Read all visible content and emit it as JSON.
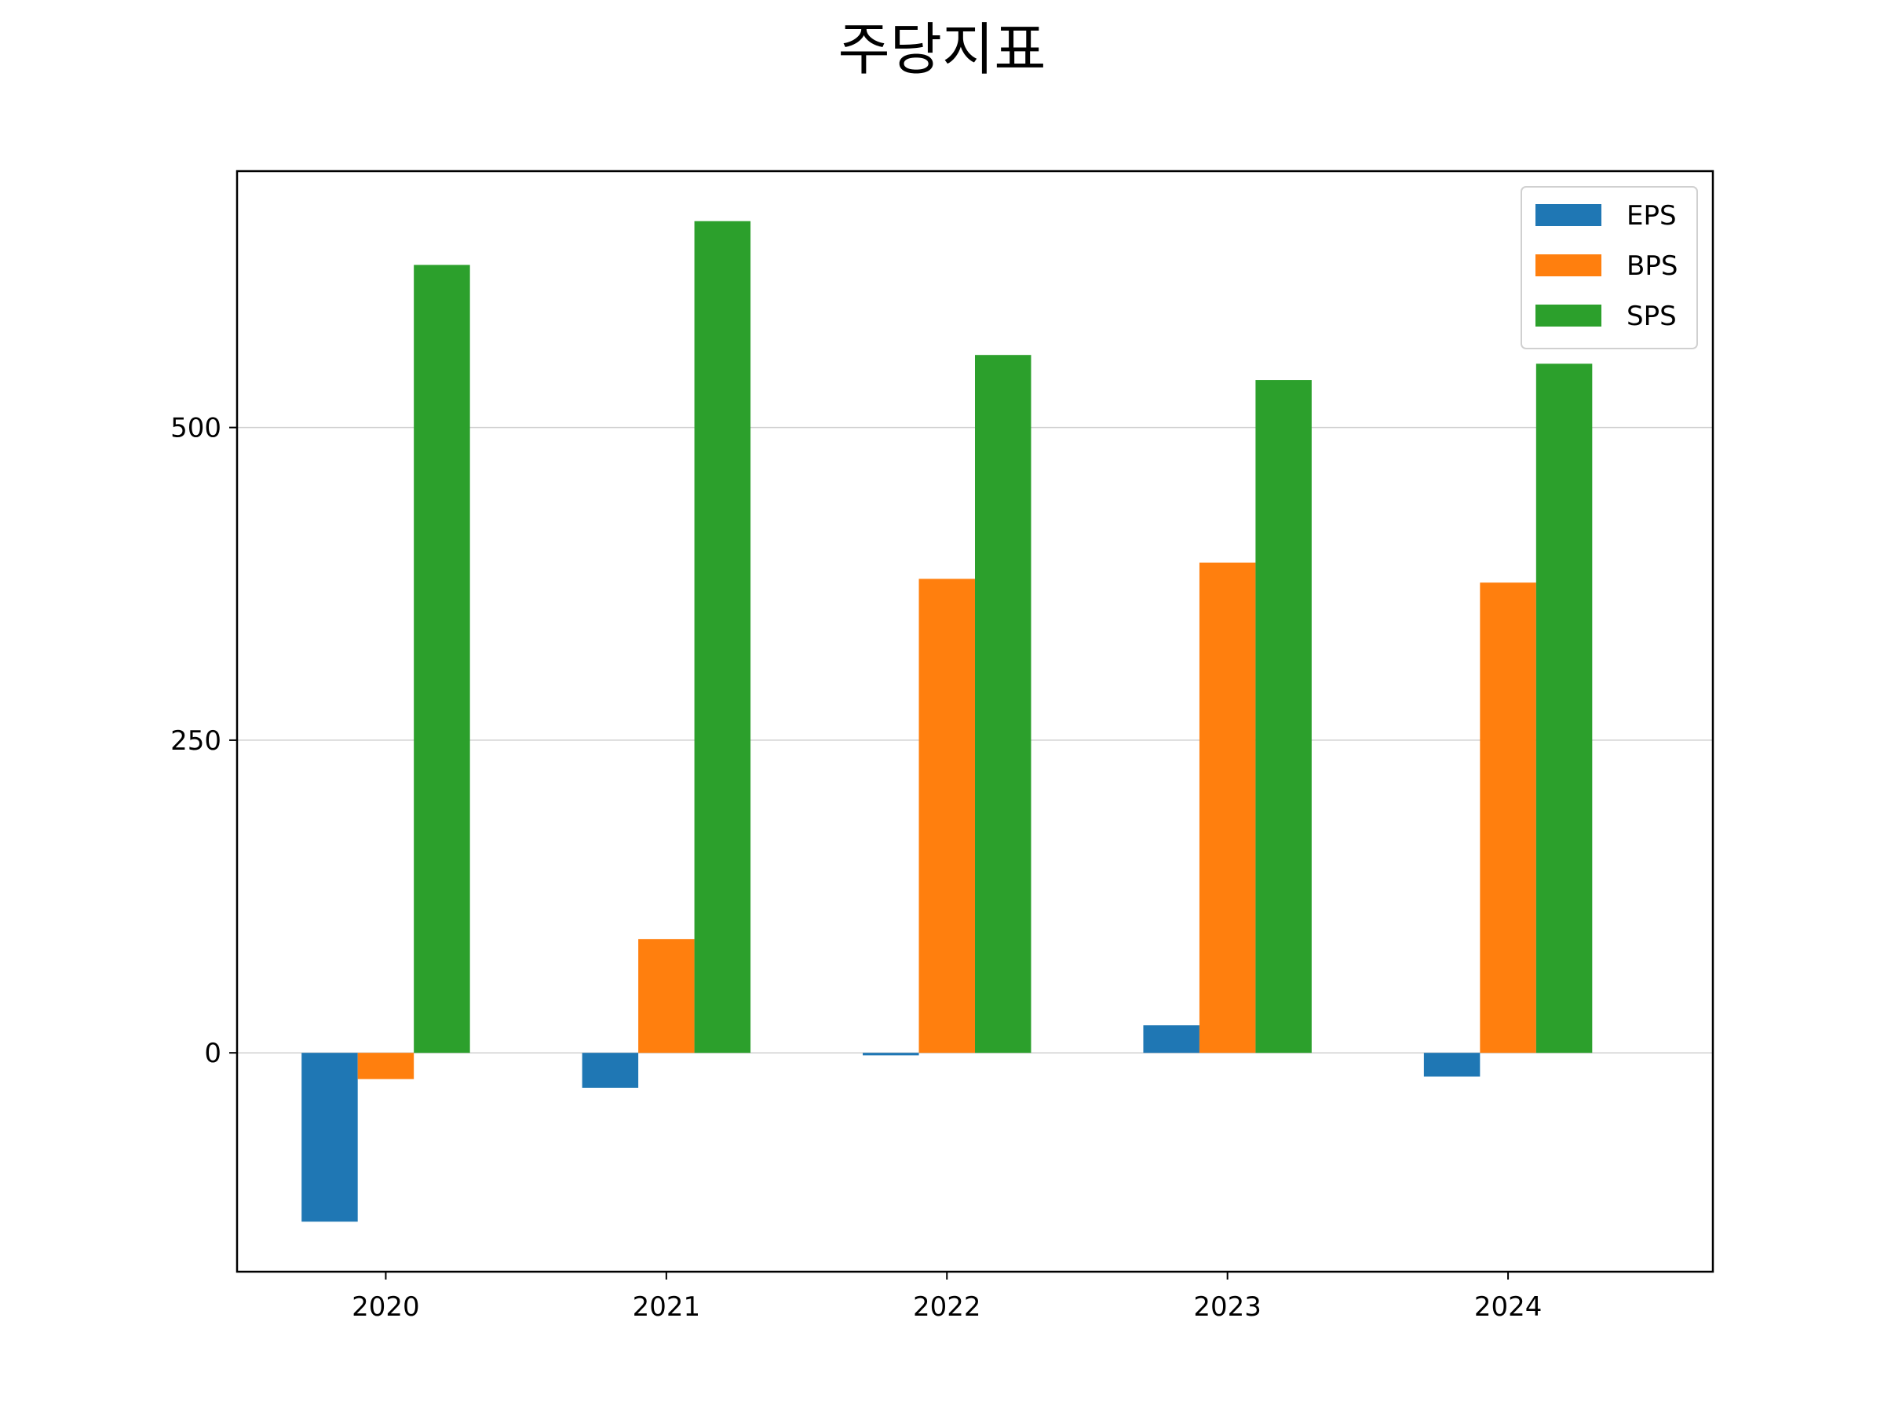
{
  "chart_data": {
    "type": "bar",
    "title": "주당지표",
    "xlabel": "",
    "ylabel": "",
    "categories": [
      "2020",
      "2021",
      "2022",
      "2023",
      "2024"
    ],
    "series": [
      {
        "name": "EPS",
        "color": "#1f77b4",
        "values": [
          -135,
          -28,
          -2,
          22,
          -19
        ]
      },
      {
        "name": "BPS",
        "color": "#ff7f0e",
        "values": [
          -21,
          91,
          379,
          392,
          376
        ]
      },
      {
        "name": "SPS",
        "color": "#2ca02c",
        "values": [
          630,
          665,
          558,
          538,
          551
        ]
      }
    ],
    "ylim": [
      -175,
      705
    ],
    "yticks": [
      "0",
      "250",
      "500"
    ],
    "grid": "y",
    "legend": "top-right"
  }
}
